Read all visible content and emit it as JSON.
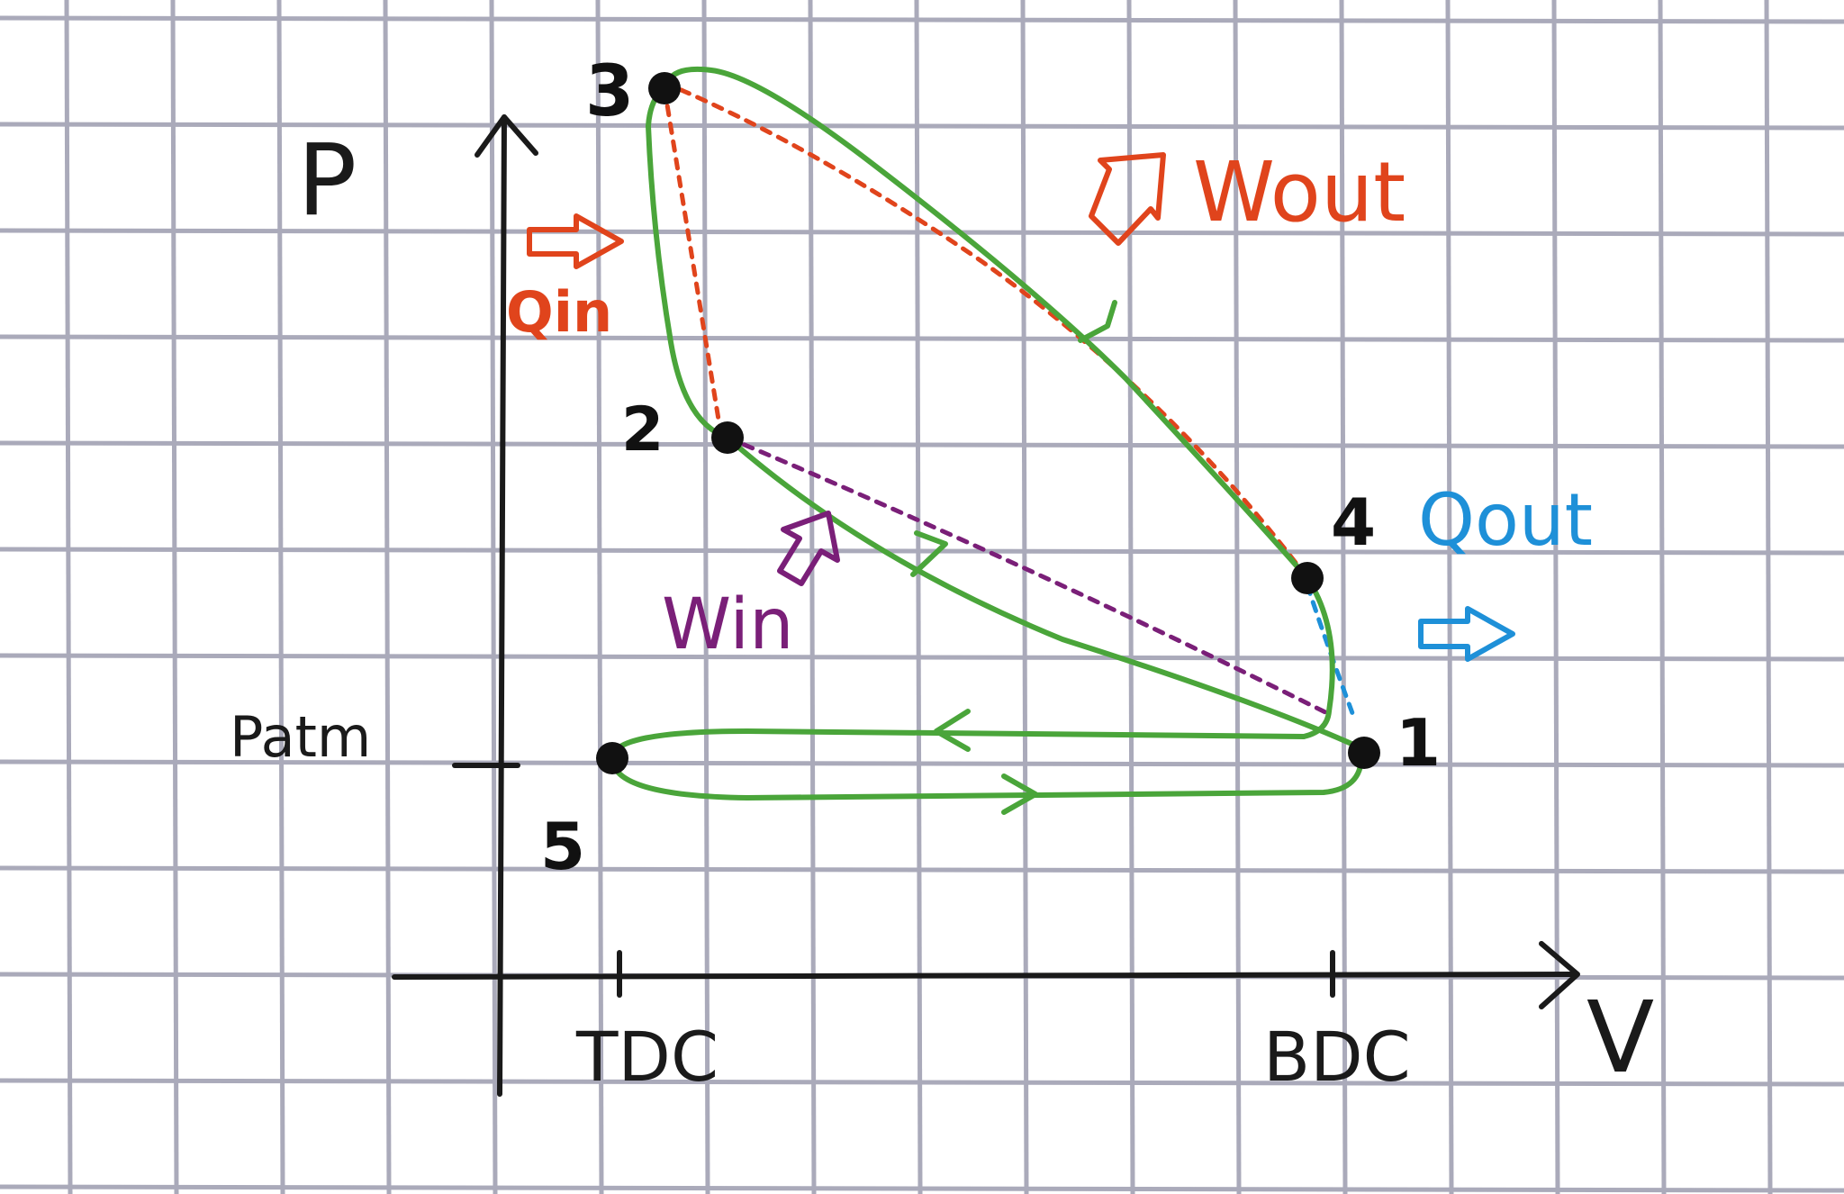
{
  "axes": {
    "y_label": "P",
    "x_label": "V",
    "patm_label": "Patm",
    "tdc_label": "TDC",
    "bdc_label": "BDC"
  },
  "points": [
    {
      "id": "1",
      "label": "1"
    },
    {
      "id": "2",
      "label": "2"
    },
    {
      "id": "3",
      "label": "3"
    },
    {
      "id": "4",
      "label": "4"
    },
    {
      "id": "5",
      "label": "5"
    }
  ],
  "annotations": {
    "q_in": "Qin",
    "w_out": "Wout",
    "q_out": "Qout",
    "w_in": "Win"
  },
  "colors": {
    "paper": "#ffffff",
    "grid": "#9c9cae",
    "ink": "#1a1a1a",
    "cycle_green": "#4aa53a",
    "heat_in_red": "#e0441c",
    "work_in_purple": "#7a1f78",
    "heat_out_blue": "#1e90d8"
  }
}
